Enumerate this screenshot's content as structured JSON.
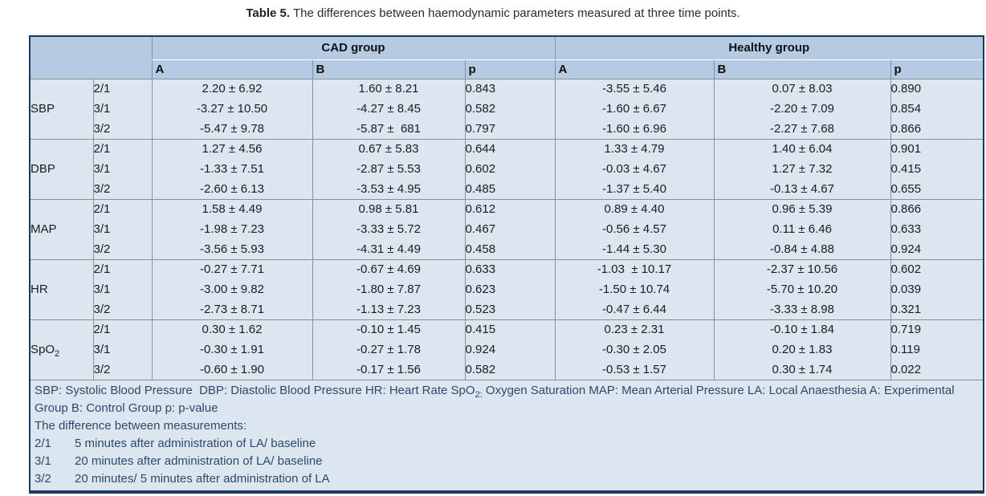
{
  "title": {
    "label": "Table 5.",
    "text": "The differences between haemodynamic parameters measured at three time points."
  },
  "table": {
    "group_headers": [
      "CAD group",
      "Healthy group"
    ],
    "sub_headers": [
      "A",
      "B",
      "p",
      "A",
      "B",
      "p"
    ],
    "groups": [
      {
        "param": "SBP",
        "param_sub": "",
        "rows": [
          {
            "ratio": "2/1",
            "cad_a": "2.20 ± 6.92",
            "cad_b": "1.60 ± 8.21",
            "cad_p": "0.843",
            "healthy_a": "-3.55 ± 5.46",
            "healthy_b": "0.07 ± 8.03",
            "healthy_p": "0.890"
          },
          {
            "ratio": "3/1",
            "cad_a": "-3.27 ± 10.50",
            "cad_b": "-4.27 ± 8.45",
            "cad_p": "0.582",
            "healthy_a": "-1.60 ± 6.67",
            "healthy_b": "-2.20 ± 7.09",
            "healthy_p": "0.854"
          },
          {
            "ratio": "3/2",
            "cad_a": "-5.47 ± 9.78",
            "cad_b": "-5.87 ±  681",
            "cad_p": "0.797",
            "healthy_a": "-1.60 ± 6.96",
            "healthy_b": "-2.27 ± 7.68",
            "healthy_p": "0.866"
          }
        ]
      },
      {
        "param": "DBP",
        "param_sub": "",
        "rows": [
          {
            "ratio": "2/1",
            "cad_a": "1.27 ± 4.56",
            "cad_b": "0.67 ± 5.83",
            "cad_p": "0.644",
            "healthy_a": "1.33 ± 4.79",
            "healthy_b": "1.40 ± 6.04",
            "healthy_p": "0.901"
          },
          {
            "ratio": "3/1",
            "cad_a": "-1.33 ± 7.51",
            "cad_b": "-2.87 ± 5.53",
            "cad_p": "0.602",
            "healthy_a": "-0.03 ± 4.67",
            "healthy_b": "1.27 ± 7.32",
            "healthy_p": "0.415"
          },
          {
            "ratio": "3/2",
            "cad_a": "-2.60 ± 6.13",
            "cad_b": "-3.53 ± 4.95",
            "cad_p": "0.485",
            "healthy_a": "-1.37 ± 5.40",
            "healthy_b": "-0.13 ± 4.67",
            "healthy_p": "0.655"
          }
        ]
      },
      {
        "param": "MAP",
        "param_sub": "",
        "rows": [
          {
            "ratio": "2/1",
            "cad_a": "1.58 ± 4.49",
            "cad_b": "0.98 ± 5.81",
            "cad_p": "0.612",
            "healthy_a": "0.89 ± 4.40",
            "healthy_b": "0.96 ± 5.39",
            "healthy_p": "0.866"
          },
          {
            "ratio": "3/1",
            "cad_a": "-1.98 ± 7.23",
            "cad_b": "-3.33 ± 5.72",
            "cad_p": "0.467",
            "healthy_a": "-0.56 ± 4.57",
            "healthy_b": "0.11 ± 6.46",
            "healthy_p": "0.633"
          },
          {
            "ratio": "3/2",
            "cad_a": "-3.56 ± 5.93",
            "cad_b": "-4.31 ± 4.49",
            "cad_p": "0.458",
            "healthy_a": "-1.44 ± 5.30",
            "healthy_b": "-0.84 ± 4.88",
            "healthy_p": "0.924"
          }
        ]
      },
      {
        "param": "HR",
        "param_sub": "",
        "rows": [
          {
            "ratio": "2/1",
            "cad_a": "-0.27 ± 7.71",
            "cad_b": "-0.67 ± 4.69",
            "cad_p": "0.633",
            "healthy_a": "-1.03  ± 10.17",
            "healthy_b": "-2.37 ± 10.56",
            "healthy_p": "0.602"
          },
          {
            "ratio": "3/1",
            "cad_a": "-3.00 ± 9.82",
            "cad_b": "-1.80 ± 7.87",
            "cad_p": "0.623",
            "healthy_a": "-1.50 ± 10.74",
            "healthy_b": "-5.70 ± 10.20",
            "healthy_p": "0.039"
          },
          {
            "ratio": "3/2",
            "cad_a": "-2.73 ± 8.71",
            "cad_b": "-1.13 ± 7.23",
            "cad_p": "0.523",
            "healthy_a": "-0.47 ± 6.44",
            "healthy_b": "-3.33 ± 8.98",
            "healthy_p": "0.321"
          }
        ]
      },
      {
        "param": "SpO",
        "param_sub": "2",
        "rows": [
          {
            "ratio": "2/1",
            "cad_a": "0.30 ± 1.62",
            "cad_b": "-0.10 ± 1.45",
            "cad_p": "0.415",
            "healthy_a": "0.23 ± 2.31",
            "healthy_b": "-0.10 ± 1.84",
            "healthy_p": "0.719"
          },
          {
            "ratio": "3/1",
            "cad_a": "-0.30 ± 1.91",
            "cad_b": "-0.27 ± 1.78",
            "cad_p": "0.924",
            "healthy_a": "-0.30 ± 2.05",
            "healthy_b": "0.20 ± 1.83",
            "healthy_p": "0.119"
          },
          {
            "ratio": "3/2",
            "cad_a": "-0.60 ± 1.90",
            "cad_b": "-0.17 ± 1.56",
            "cad_p": "0.582",
            "healthy_a": "-0.53 ± 1.57",
            "healthy_b": "0.30 ± 1.74",
            "healthy_p": "0.022"
          }
        ]
      }
    ],
    "footnote": {
      "abbrev_pre": "SBP: Systolic Blood Pressure  DBP: Diastolic Blood Pressure HR: Heart Rate SpO",
      "abbrev_sub": "2:",
      "abbrev_post": " Oxygen Saturation MAP: Mean Arterial Pressure LA: Local Anaesthesia A: Experimental Group B: Control Group p: p-value",
      "diff_heading": "The difference between measurements:",
      "definitions": [
        {
          "key": "2/1",
          "text": "5 minutes after administration of LA/ baseline"
        },
        {
          "key": "3/1",
          "text": "20 minutes after administration of LA/ baseline"
        },
        {
          "key": "3/2",
          "text": "20 minutes/ 5 minutes after administration of LA"
        }
      ]
    }
  },
  "colors": {
    "header_bg": "#b4cbe3",
    "body_bg": "#dce6f1",
    "outer_border": "#1c3a5f",
    "inner_border": "#8f8f8f",
    "footnote_text": "#2d4a68"
  }
}
